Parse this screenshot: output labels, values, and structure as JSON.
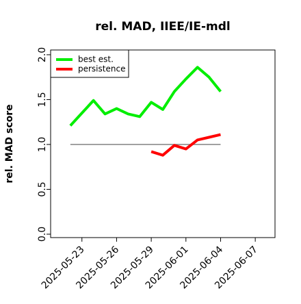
{
  "chart_data": {
    "type": "line",
    "title": "rel. MAD, IIEE/IE-mdl",
    "y_label": "rel. MAD score",
    "x": [
      "2025-05-22",
      "2025-05-23",
      "2025-05-24",
      "2025-05-25",
      "2025-05-26",
      "2025-05-27",
      "2025-05-28",
      "2025-05-29",
      "2025-05-30",
      "2025-05-31",
      "2025-06-01",
      "2025-06-02",
      "2025-06-03",
      "2025-06-04"
    ],
    "series": [
      {
        "name": "best est.",
        "color": "#00ee00",
        "values": [
          1.21,
          1.35,
          1.49,
          1.34,
          1.4,
          1.34,
          1.31,
          1.47,
          1.39,
          1.59,
          1.73,
          1.86,
          1.75,
          1.59
        ]
      },
      {
        "name": "persistence",
        "color": "#ff0000",
        "values": [
          null,
          null,
          null,
          null,
          null,
          null,
          null,
          0.92,
          0.88,
          0.99,
          0.95,
          1.05,
          1.08,
          1.11
        ]
      }
    ],
    "reference_line": {
      "value": 1.0,
      "color": "#808080",
      "x": [
        "2025-05-22",
        "2025-06-04"
      ]
    },
    "xlim": [
      "2025-05-20T07:00",
      "2025-06-08T17:00"
    ],
    "xticks": [
      "2025-05-23",
      "2025-05-26",
      "2025-05-29",
      "2025-06-01",
      "2025-06-04",
      "2025-06-07"
    ],
    "ylim": [
      -0.038,
      2.053
    ],
    "yticks": [
      {
        "value": 0,
        "label": "0.0"
      },
      {
        "value": 0.5,
        "label": "0.5"
      },
      {
        "value": 1,
        "label": "1.0"
      },
      {
        "value": 1.5,
        "label": "1.5"
      },
      {
        "value": 2,
        "label": "2.0"
      }
    ],
    "legend": "upper-left"
  }
}
